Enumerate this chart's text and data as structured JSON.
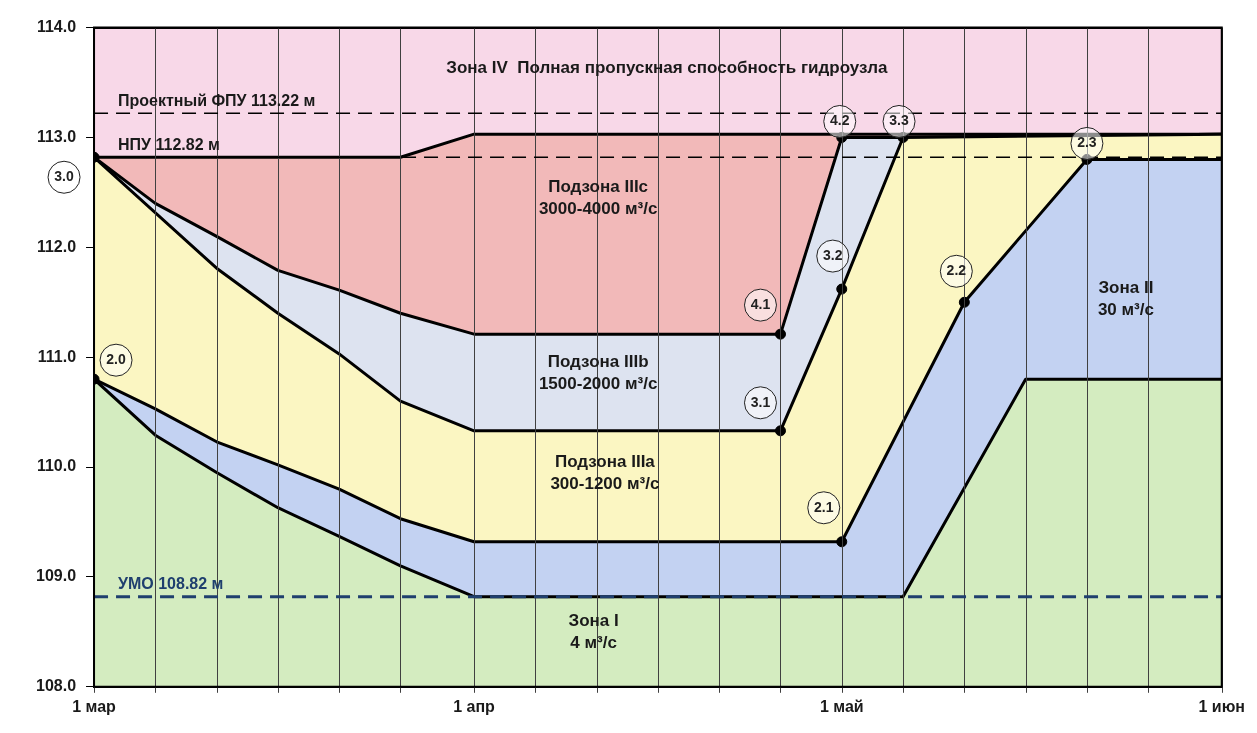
{
  "chart_data": {
    "type": "area",
    "xlim": [
      "--03-01",
      "--06-01"
    ],
    "xticks": [
      {
        "value": "--03-01",
        "label": "1 мар"
      },
      {
        "value": "--03-06",
        "label": null
      },
      {
        "value": "--03-11",
        "label": null
      },
      {
        "value": "--03-16",
        "label": null
      },
      {
        "value": "--03-21",
        "label": null
      },
      {
        "value": "--03-26",
        "label": null
      },
      {
        "value": "--04-01",
        "label": "1 апр"
      },
      {
        "value": "--04-06",
        "label": null
      },
      {
        "value": "--04-11",
        "label": null
      },
      {
        "value": "--04-16",
        "label": null
      },
      {
        "value": "--04-21",
        "label": null
      },
      {
        "value": "--04-26",
        "label": null
      },
      {
        "value": "--05-01",
        "label": "1 май"
      },
      {
        "value": "--05-06",
        "label": null
      },
      {
        "value": "--05-11",
        "label": null
      },
      {
        "value": "--05-16",
        "label": null
      },
      {
        "value": "--05-21",
        "label": null
      },
      {
        "value": "--05-26",
        "label": null
      },
      {
        "value": "--06-01",
        "label": "1 июн"
      }
    ],
    "ylim": [
      108,
      114
    ],
    "yticks": [
      {
        "value": 108,
        "label": "108.0"
      },
      {
        "value": 109,
        "label": "109.0"
      },
      {
        "value": 110,
        "label": "110.0"
      },
      {
        "value": 111,
        "label": "111.0"
      },
      {
        "value": 112,
        "label": "112.0"
      },
      {
        "value": 113,
        "label": "113.0"
      },
      {
        "value": 114,
        "label": "114.0"
      }
    ],
    "grid": "x",
    "legend": false,
    "series": [
      {
        "color": "#d4ecc0",
        "x": [
          "--03-01",
          "--03-06",
          "--03-11",
          "--03-16",
          "--03-21",
          "--03-26",
          "--04-01",
          "--05-06",
          "--05-16",
          "--06-01"
        ],
        "values": [
          110.8,
          110.29,
          109.95,
          109.63,
          109.37,
          109.1,
          108.82,
          108.82,
          110.8,
          110.8
        ]
      },
      {
        "color": "#c3d2f2",
        "x": [
          "--03-01",
          "--03-06",
          "--03-11",
          "--03-16",
          "--03-21",
          "--03-26",
          "--04-01",
          "--05-01",
          "--05-11",
          "--05-16",
          "--05-21",
          "--06-01"
        ],
        "values": [
          110.8,
          110.53,
          110.23,
          110.02,
          109.8,
          109.53,
          109.32,
          109.32,
          111.5,
          112.15,
          112.8,
          112.8
        ]
      },
      {
        "color": "#fbf6c2",
        "x": [
          "--03-01",
          "--03-11",
          "--03-16",
          "--03-21",
          "--03-26",
          "--04-01",
          "--04-26",
          "--05-01",
          "--05-06",
          "--06-01"
        ],
        "values": [
          112.82,
          111.81,
          111.4,
          111.03,
          110.6,
          110.33,
          110.33,
          111.62,
          113.0,
          113.03
        ]
      },
      {
        "color": "#dde3f0",
        "x": [
          "--03-01",
          "--03-06",
          "--03-11",
          "--03-16",
          "--03-21",
          "--03-26",
          "--04-01",
          "--04-26",
          "--05-01",
          "--05-06",
          "--06-01"
        ],
        "values": [
          112.82,
          112.4,
          112.1,
          111.79,
          111.61,
          111.4,
          111.21,
          111.21,
          113.0,
          113.0,
          113.03
        ]
      },
      {
        "color": "#f2b9b9",
        "x": [
          "--03-01",
          "--03-06",
          "--03-11",
          "--03-16",
          "--03-21",
          "--03-26",
          "--04-01",
          "--04-26",
          "--05-01",
          "--05-06",
          "--06-01"
        ],
        "values": [
          112.82,
          112.82,
          112.82,
          112.82,
          112.82,
          112.82,
          113.03,
          113.03,
          113.03,
          113.03,
          113.03
        ]
      },
      {
        "color": "#f8d8e8",
        "x": [
          "--03-01",
          "--06-01"
        ],
        "values": [
          114,
          114
        ]
      },
      {
        "type": "scatter",
        "marker": "circle",
        "color": "#000000",
        "x": [
          "--03-01",
          "--03-01",
          "--04-26",
          "--05-01",
          "--04-26",
          "--05-01",
          "--05-06",
          "--05-01",
          "--05-11",
          "--05-21"
        ],
        "values": [
          112.82,
          110.8,
          111.21,
          113.0,
          110.33,
          111.62,
          113.0,
          109.32,
          111.5,
          112.8
        ]
      }
    ],
    "ref_lines": [
      {
        "axis": "y",
        "value": 113.22,
        "label": "Проектный ФПУ 113.22 м",
        "color": "#000000",
        "line_style": "dashed"
      },
      {
        "axis": "y",
        "value": 112.82,
        "label": "НПУ 112.82 м",
        "color": "#000000",
        "line_style": "dashed"
      },
      {
        "axis": "y",
        "value": 108.82,
        "label": "УМО 108.82 м",
        "color": "#1f3f6e",
        "line_style": "dashed"
      }
    ],
    "annotations": [
      "Зона IV  Полная пропускная способность гидроузла",
      "Подзона IIIc\n3000-4000 м³/с",
      "Подзона IIIb\n1500-2000 м³/с",
      "Подзона IIIa\n300-1200 м³/с",
      "Зона II\n30 м³/с",
      "Зона I\n4 м³/с",
      {
        "text": "3.0",
        "x": "--03-01",
        "y": 112.82
      },
      {
        "text": "2.0",
        "x": "--03-01",
        "y": 110.8
      },
      {
        "text": "4.1",
        "x": "--04-26",
        "y": 111.21
      },
      {
        "text": "4.2",
        "x": "--05-01",
        "y": 113.0
      },
      {
        "text": "3.1",
        "x": "--04-26",
        "y": 110.33
      },
      {
        "text": "3.2",
        "x": "--05-01",
        "y": 111.62
      },
      {
        "text": "3.3",
        "x": "--05-06",
        "y": 113.0
      },
      {
        "text": "2.1",
        "x": "--05-01",
        "y": 109.32
      },
      {
        "text": "2.2",
        "x": "--05-11",
        "y": 111.5
      },
      {
        "text": "2.3",
        "x": "--05-21",
        "y": 112.8
      }
    ]
  }
}
